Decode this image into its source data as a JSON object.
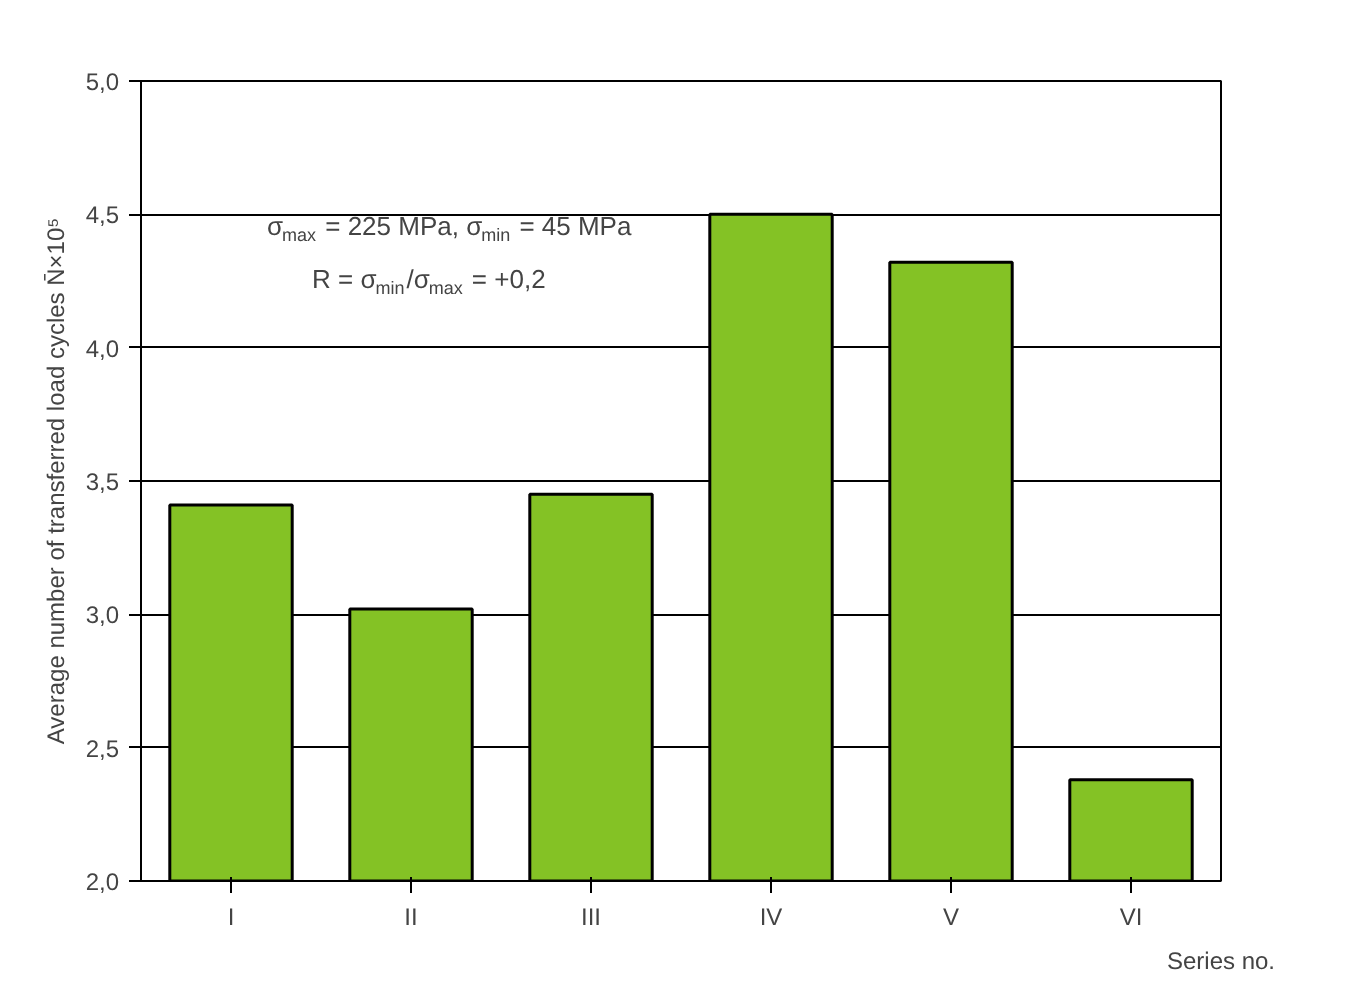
{
  "chart_data": {
    "type": "bar",
    "categories": [
      "I",
      "II",
      "III",
      "IV",
      "V",
      "VI"
    ],
    "values": [
      3.41,
      3.02,
      3.45,
      4.5,
      4.32,
      2.38
    ],
    "color": "#84c225",
    "xlabel": "Series no.",
    "ylabel": "Average number of transferred load cycles N̄×10⁵",
    "ylim": [
      2.0,
      5.0
    ],
    "yticks": [
      {
        "value": 2.0,
        "label": "2,0"
      },
      {
        "value": 2.5,
        "label": "2,5"
      },
      {
        "value": 3.0,
        "label": "3,0"
      },
      {
        "value": 3.5,
        "label": "3,5"
      },
      {
        "value": 4.0,
        "label": "4,0"
      },
      {
        "value": 4.5,
        "label": "4,5"
      },
      {
        "value": 5.0,
        "label": "5,0"
      }
    ],
    "grid": "y",
    "annotations": [
      "σ$_{max}$ = 225 MPa, σ$_{min}$ = 45 MPa",
      "R = σ$_{min}$/σ$_{max}$ = +0,2"
    ]
  }
}
